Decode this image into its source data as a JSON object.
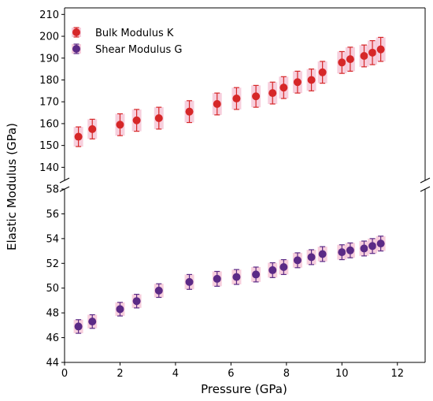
{
  "chart_data": {
    "type": "scatter",
    "xlabel": "Pressure (GPa)",
    "ylabel": "Elastic Modulus (GPa)",
    "xlim": [
      0,
      13
    ],
    "xticks": [
      0,
      2,
      4,
      6,
      8,
      10,
      12
    ],
    "broken_y_axis": true,
    "panels": [
      {
        "name": "top",
        "ylim": [
          134,
          213
        ],
        "yticks": [
          140,
          150,
          160,
          170,
          180,
          190,
          200,
          210
        ]
      },
      {
        "name": "bottom",
        "ylim": [
          44,
          58
        ],
        "yticks": [
          44,
          46,
          48,
          50,
          52,
          54,
          56,
          58
        ]
      }
    ],
    "legend_position": "top-left",
    "series": [
      {
        "name": "Bulk Modulus K",
        "panel": "top",
        "color": "#d62728",
        "x": [
          0.5,
          1.0,
          2.0,
          2.6,
          3.4,
          4.5,
          5.5,
          6.2,
          6.9,
          7.5,
          7.9,
          8.4,
          8.9,
          9.3,
          10.0,
          10.3,
          10.8,
          11.1,
          11.4
        ],
        "y": [
          154,
          157.5,
          159.5,
          161.5,
          162.5,
          165.5,
          169,
          171.5,
          172.5,
          174,
          176.5,
          179,
          180,
          183.5,
          188,
          189.5,
          191,
          192.5,
          194
        ],
        "error": [
          4.5,
          4.5,
          5,
          5,
          5,
          5,
          5,
          5,
          5,
          5,
          5,
          5,
          5,
          5,
          5,
          5.5,
          5,
          5.5,
          5.5
        ]
      },
      {
        "name": "Shear Modulus G",
        "panel": "bottom",
        "color": "#5b2a86",
        "x": [
          0.5,
          1.0,
          2.0,
          2.6,
          3.4,
          4.5,
          5.5,
          6.2,
          6.9,
          7.5,
          7.9,
          8.4,
          8.9,
          9.3,
          10.0,
          10.3,
          10.8,
          11.1,
          11.4
        ],
        "y": [
          46.9,
          47.3,
          48.3,
          48.95,
          49.8,
          50.5,
          50.75,
          50.9,
          51.1,
          51.45,
          51.7,
          52.25,
          52.5,
          52.75,
          52.9,
          53.05,
          53.2,
          53.4,
          53.6
        ],
        "error": [
          0.55,
          0.55,
          0.55,
          0.55,
          0.55,
          0.6,
          0.6,
          0.6,
          0.6,
          0.6,
          0.6,
          0.6,
          0.6,
          0.6,
          0.6,
          0.6,
          0.6,
          0.6,
          0.6
        ]
      }
    ]
  }
}
